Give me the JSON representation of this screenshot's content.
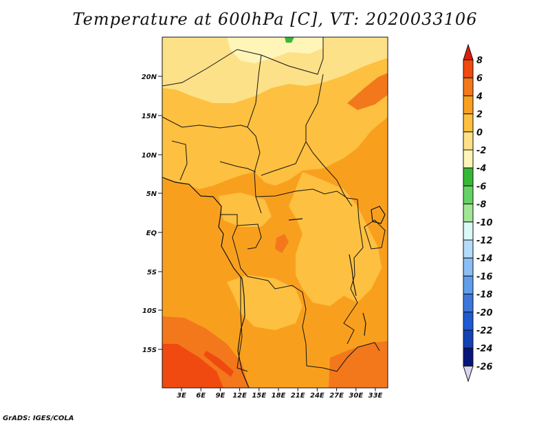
{
  "title": "Temperature at 600hPa [C], VT: 2020033106",
  "footer": "GrADS: IGES/COLA",
  "map": {
    "lat_labels": [
      "20N",
      "15N",
      "10N",
      "5N",
      "EQ",
      "5S",
      "10S",
      "15S"
    ],
    "lon_labels": [
      "3E",
      "6E",
      "9E",
      "12E",
      "15E",
      "18E",
      "21E",
      "24E",
      "27E",
      "30E",
      "33E"
    ],
    "lon_range": [
      0,
      35
    ],
    "lat_range": [
      -20,
      25
    ]
  },
  "colorbar": {
    "levels": [
      "8",
      "6",
      "4",
      "2",
      "0",
      "-2",
      "-4",
      "-6",
      "-8",
      "-10",
      "-12",
      "-14",
      "-16",
      "-18",
      "-20",
      "-22",
      "-24",
      "-26"
    ],
    "colors": [
      "#dc1e0c",
      "#f04a10",
      "#f3781c",
      "#f8a01e",
      "#fdc040",
      "#fde188",
      "#fff5b8",
      "#36b836",
      "#64d264",
      "#a0e696",
      "#daf8f6",
      "#b4dcf8",
      "#8cbef4",
      "#5f9eea",
      "#3c78dc",
      "#1e5ad2",
      "#1242b4",
      "#06167a",
      "#d6d6f2"
    ]
  }
}
